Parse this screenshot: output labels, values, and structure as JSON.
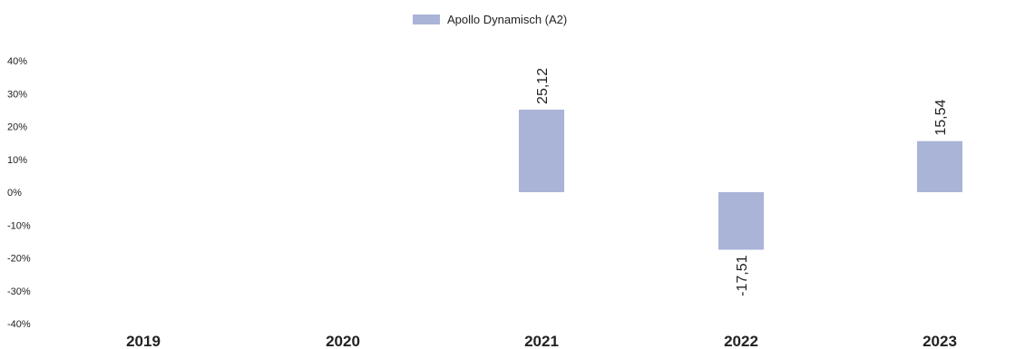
{
  "chart_data": {
    "type": "bar",
    "categories": [
      "2019",
      "2020",
      "2021",
      "2022",
      "2023"
    ],
    "series": [
      {
        "name": "Apollo Dynamisch (A2)",
        "values": [
          null,
          null,
          25.12,
          -17.51,
          15.54
        ]
      }
    ],
    "data_labels": [
      "",
      "",
      "25,12",
      "-17,51",
      "15,54"
    ],
    "y_ticks": [
      "40%",
      "30%",
      "20%",
      "10%",
      "0%",
      "-10%",
      "-20%",
      "-30%",
      "-40%"
    ],
    "ylim": [
      -40,
      40
    ],
    "grid": false,
    "legend_position": "top-center",
    "colors": {
      "series": "#aab4d7"
    }
  }
}
